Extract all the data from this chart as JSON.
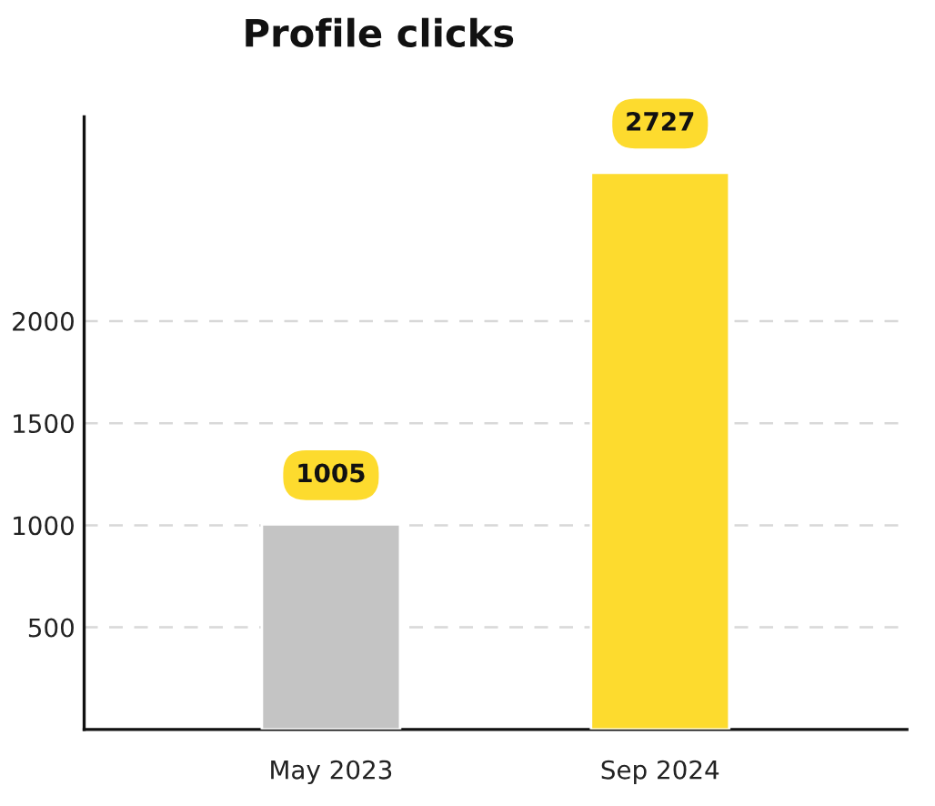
{
  "chart_data": {
    "type": "bar",
    "title": "Profile clicks",
    "categories": [
      "May 2023",
      "Sep 2024"
    ],
    "values": [
      1005,
      2727
    ],
    "colors": [
      "#c4c4c4",
      "#fddb2e"
    ],
    "ylim": [
      0,
      3000
    ],
    "yticks": [
      500,
      1000,
      1500,
      2000
    ],
    "grid": "y",
    "data_labels": true
  }
}
